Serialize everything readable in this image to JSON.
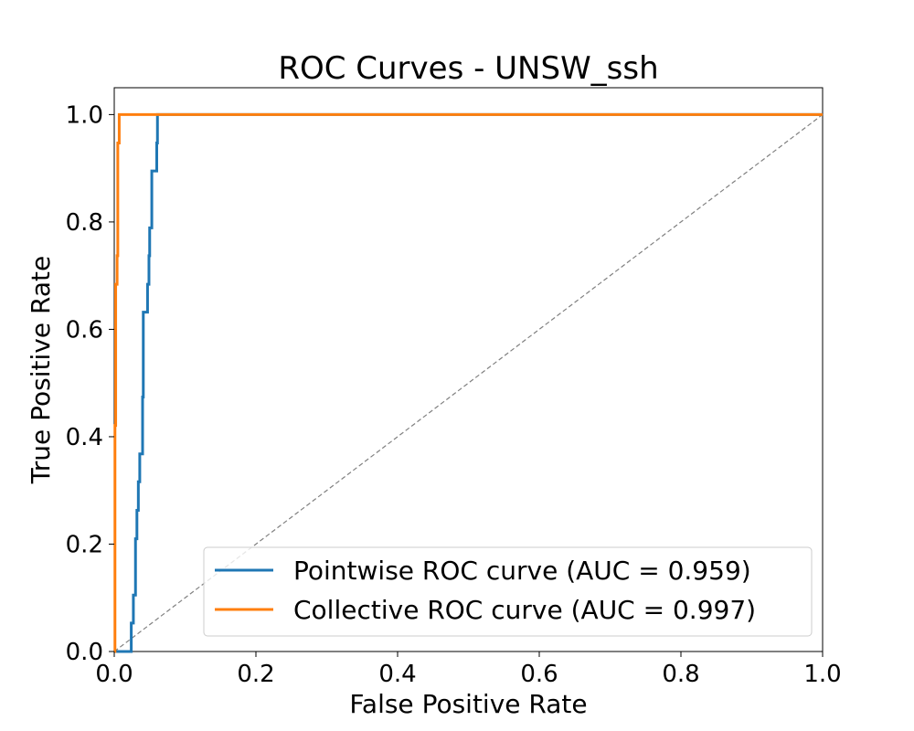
{
  "chart_data": {
    "type": "line",
    "title": "ROC Curves - UNSW_ssh",
    "xlabel": "False Positive Rate",
    "ylabel": "True Positive Rate",
    "xlim": [
      0.0,
      1.05
    ],
    "ylim": [
      0.0,
      1.05
    ],
    "x_ticks": [
      0.0,
      0.2,
      0.4,
      0.6,
      0.8,
      1.0
    ],
    "y_ticks": [
      0.0,
      0.2,
      0.4,
      0.6,
      0.8,
      1.0
    ],
    "x_tick_labels": [
      "0.0",
      "0.2",
      "0.4",
      "0.6",
      "0.8",
      "1.0"
    ],
    "y_tick_labels": [
      "0.0",
      "0.2",
      "0.4",
      "0.6",
      "0.8",
      "1.0"
    ],
    "grid": false,
    "legend_position": "lower-right",
    "series": [
      {
        "name": "Pointwise ROC curve (AUC = 0.959)",
        "color": "#1f77b4",
        "points": [
          [
            0.0,
            0.0
          ],
          [
            0.024,
            0.0
          ],
          [
            0.024,
            0.053
          ],
          [
            0.027,
            0.053
          ],
          [
            0.027,
            0.105
          ],
          [
            0.03,
            0.105
          ],
          [
            0.03,
            0.21
          ],
          [
            0.032,
            0.21
          ],
          [
            0.032,
            0.263
          ],
          [
            0.034,
            0.263
          ],
          [
            0.034,
            0.316
          ],
          [
            0.036,
            0.316
          ],
          [
            0.036,
            0.368
          ],
          [
            0.04,
            0.368
          ],
          [
            0.04,
            0.474
          ],
          [
            0.041,
            0.474
          ],
          [
            0.041,
            0.632
          ],
          [
            0.047,
            0.632
          ],
          [
            0.047,
            0.684
          ],
          [
            0.049,
            0.684
          ],
          [
            0.049,
            0.737
          ],
          [
            0.05,
            0.737
          ],
          [
            0.05,
            0.789
          ],
          [
            0.053,
            0.789
          ],
          [
            0.053,
            0.895
          ],
          [
            0.06,
            0.895
          ],
          [
            0.06,
            0.947
          ],
          [
            0.061,
            0.947
          ],
          [
            0.061,
            1.0
          ],
          [
            1.0,
            1.0
          ]
        ]
      },
      {
        "name": "Collective ROC curve (AUC = 0.997)",
        "color": "#ff7f0e",
        "points": [
          [
            0.0,
            0.0
          ],
          [
            0.001,
            0.0
          ],
          [
            0.001,
            0.421
          ],
          [
            0.002,
            0.421
          ],
          [
            0.002,
            0.684
          ],
          [
            0.004,
            0.684
          ],
          [
            0.004,
            0.737
          ],
          [
            0.005,
            0.737
          ],
          [
            0.005,
            0.947
          ],
          [
            0.007,
            0.947
          ],
          [
            0.007,
            1.0
          ],
          [
            1.0,
            1.0
          ]
        ]
      }
    ],
    "reference_line": {
      "points": [
        [
          0.0,
          0.0
        ],
        [
          1.0,
          1.0
        ]
      ],
      "color": "#808080",
      "style": "dashed"
    }
  }
}
